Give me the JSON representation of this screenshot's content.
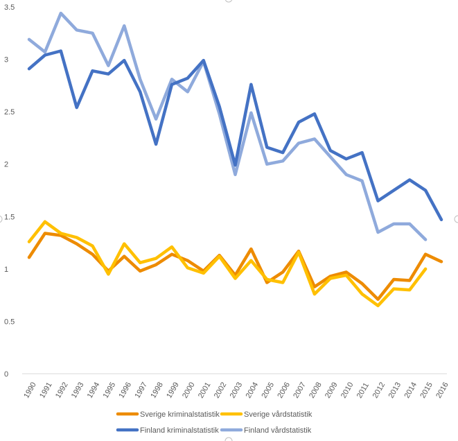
{
  "chart_data": {
    "type": "line",
    "title": "",
    "xlabel": "",
    "ylabel": "",
    "ylim": [
      0,
      3.5
    ],
    "yticks": [
      0,
      0.5,
      1,
      1.5,
      2,
      2.5,
      3,
      3.5
    ],
    "ytick_labels": [
      "0",
      "0.5",
      "1",
      "1.5",
      "2",
      "2.5",
      "3",
      "3.5"
    ],
    "categories": [
      "1990",
      "1991",
      "1992",
      "1993",
      "1994",
      "1995",
      "1996",
      "1997",
      "1998",
      "1999",
      "2000",
      "2001",
      "2002",
      "2003",
      "2004",
      "2005",
      "2006",
      "2007",
      "2008",
      "2009",
      "2010",
      "2011",
      "2012",
      "2013",
      "2014",
      "2015",
      "2016"
    ],
    "grid": false,
    "legend_position": "bottom",
    "series": [
      {
        "name": "Sverige kriminalstatistik",
        "color": "#ed8b00",
        "values": [
          1.11,
          1.34,
          1.32,
          1.24,
          1.14,
          0.98,
          1.12,
          0.98,
          1.04,
          1.14,
          1.08,
          0.98,
          1.13,
          0.94,
          1.19,
          0.87,
          0.97,
          1.17,
          0.83,
          0.93,
          0.97,
          0.86,
          0.71,
          0.9,
          0.89,
          1.14,
          1.07
        ]
      },
      {
        "name": "Sverige vårdstatistik",
        "color": "#ffc000",
        "values": [
          1.26,
          1.45,
          1.34,
          1.3,
          1.22,
          0.95,
          1.24,
          1.06,
          1.1,
          1.21,
          1.01,
          0.96,
          1.12,
          0.91,
          1.08,
          0.9,
          0.87,
          1.16,
          0.76,
          0.91,
          0.94,
          0.76,
          0.65,
          0.81,
          0.8,
          1.0,
          null
        ]
      },
      {
        "name": "Finland kriminalstatistik",
        "color": "#4472c4",
        "values": [
          2.91,
          3.04,
          3.08,
          2.54,
          2.89,
          2.86,
          2.99,
          2.69,
          2.19,
          2.76,
          2.82,
          2.99,
          2.55,
          1.99,
          2.76,
          2.16,
          2.11,
          2.4,
          2.48,
          2.13,
          2.05,
          2.11,
          1.65,
          1.75,
          1.85,
          1.75,
          1.47
        ]
      },
      {
        "name": "Finland vårdstatistik",
        "color": "#8faadc",
        "values": [
          3.19,
          3.07,
          3.44,
          3.28,
          3.25,
          2.94,
          3.32,
          2.81,
          2.43,
          2.81,
          2.69,
          2.98,
          2.48,
          1.9,
          2.49,
          2.0,
          2.03,
          2.2,
          2.24,
          2.07,
          1.9,
          1.84,
          1.35,
          1.43,
          1.43,
          1.28,
          null
        ]
      }
    ]
  }
}
